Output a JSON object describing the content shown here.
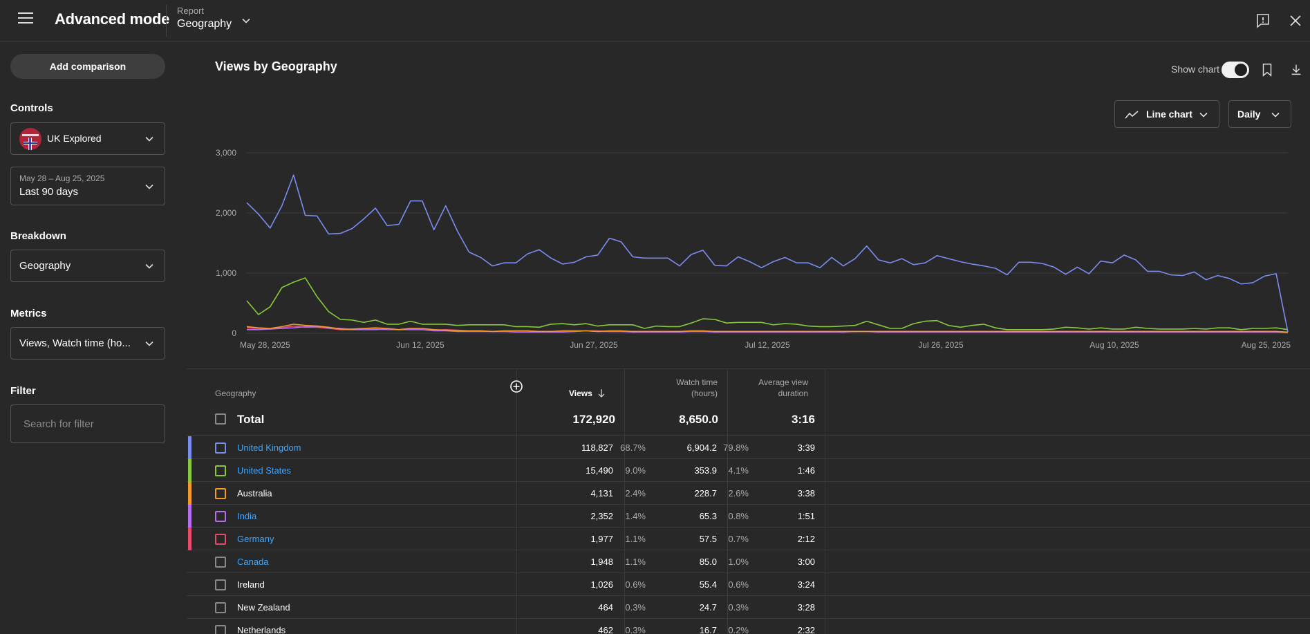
{
  "header": {
    "app_title": "Advanced mode",
    "report_label": "Report",
    "report_value": "Geography"
  },
  "sidebar": {
    "add_comparison": "Add comparison",
    "controls_title": "Controls",
    "channel_name": "UK Explored",
    "date_range": "May 28 – Aug 25, 2025",
    "date_preset": "Last 90 days",
    "breakdown_title": "Breakdown",
    "breakdown_value": "Geography",
    "metrics_title": "Metrics",
    "metrics_value": "Views, Watch time (ho...",
    "filter_title": "Filter",
    "filter_placeholder": "Search for filter"
  },
  "main": {
    "chart_title": "Views by Geography",
    "show_chart_label": "Show chart",
    "show_chart_on": true,
    "chart_type_label": "Line chart",
    "interval_label": "Daily"
  },
  "chart_data": {
    "type": "line",
    "xlabel": "",
    "ylabel": "",
    "ylim": [
      0,
      3000
    ],
    "y_ticks": [
      "3,000",
      "2,000",
      "1,000",
      "0"
    ],
    "x_tick_labels": [
      "May 28, 2025",
      "Jun 12, 2025",
      "Jun 27, 2025",
      "Jul 12, 2025",
      "Jul 26, 2025",
      "Aug 10, 2025",
      "Aug 25, 2025"
    ],
    "grid": true,
    "series": [
      {
        "color": "#7b8cf0",
        "values": [
          2170,
          1980,
          1750,
          2120,
          2630,
          1960,
          1950,
          1650,
          1660,
          1740,
          1900,
          2080,
          1790,
          1810,
          2200,
          2200,
          1720,
          2120,
          1700,
          1350,
          1260,
          1120,
          1170,
          1170,
          1320,
          1390,
          1250,
          1150,
          1180,
          1270,
          1300,
          1580,
          1520,
          1270,
          1250,
          1250,
          1250,
          1120,
          1310,
          1380,
          1130,
          1120,
          1270,
          1190,
          1090,
          1190,
          1260,
          1170,
          1170,
          1090,
          1260,
          1120,
          1240,
          1450,
          1220,
          1170,
          1240,
          1140,
          1170,
          1290,
          1240,
          1190,
          1150,
          1120,
          1080,
          970,
          1180,
          1180,
          1160,
          1100,
          980,
          1100,
          990,
          1200,
          1170,
          1300,
          1220,
          1030,
          1030,
          970,
          960,
          1020,
          890,
          960,
          910,
          820,
          840,
          950,
          990,
          20
        ]
      },
      {
        "color": "#88c93b",
        "values": [
          540,
          310,
          440,
          760,
          850,
          920,
          610,
          360,
          230,
          220,
          180,
          220,
          150,
          150,
          200,
          150,
          150,
          150,
          130,
          140,
          140,
          140,
          140,
          110,
          110,
          100,
          150,
          160,
          140,
          160,
          120,
          140,
          140,
          140,
          80,
          120,
          110,
          110,
          170,
          240,
          230,
          170,
          180,
          180,
          180,
          140,
          160,
          150,
          120,
          110,
          110,
          120,
          130,
          200,
          140,
          80,
          80,
          160,
          200,
          210,
          130,
          100,
          130,
          150,
          90,
          60,
          60,
          60,
          60,
          70,
          100,
          90,
          70,
          90,
          70,
          70,
          100,
          80,
          70,
          70,
          70,
          80,
          70,
          90,
          90,
          60,
          80,
          80,
          90,
          60
        ]
      },
      {
        "color": "#f59a26",
        "values": [
          110,
          90,
          80,
          110,
          150,
          130,
          120,
          100,
          70,
          70,
          80,
          90,
          80,
          60,
          80,
          80,
          60,
          50,
          40,
          40,
          40,
          30,
          40,
          40,
          40,
          30,
          30,
          40,
          40,
          40,
          30,
          40,
          40,
          30,
          30,
          30,
          30,
          30,
          40,
          40,
          30,
          30,
          30,
          30,
          30,
          30,
          30,
          30,
          30,
          30,
          30,
          30,
          30,
          30,
          30,
          30,
          30,
          30,
          30,
          30,
          30,
          30,
          30,
          30,
          30,
          30,
          30,
          30,
          30,
          30,
          30,
          30,
          30,
          30,
          30,
          30,
          30,
          30,
          30,
          30,
          30,
          30,
          30,
          30,
          30,
          30,
          30,
          30,
          30,
          20
        ]
      },
      {
        "color": "#b56ef0",
        "values": [
          60,
          60,
          70,
          80,
          90,
          110,
          110,
          90,
          80,
          60,
          60,
          60,
          70,
          60,
          60,
          60,
          40,
          40,
          30,
          30,
          30,
          30,
          30,
          20,
          20,
          20,
          20,
          20,
          30,
          40,
          30,
          30,
          30,
          20,
          20,
          20,
          20,
          20,
          30,
          30,
          20,
          20,
          20,
          20,
          20,
          20,
          20,
          20,
          20,
          20,
          20,
          20,
          30,
          30,
          20,
          20,
          20,
          20,
          20,
          20,
          20,
          20,
          20,
          20,
          20,
          20,
          20,
          20,
          20,
          20,
          20,
          20,
          20,
          20,
          20,
          20,
          20,
          20,
          20,
          20,
          20,
          20,
          20,
          20,
          20,
          20,
          20,
          20,
          20,
          10
        ]
      },
      {
        "color": "#e84a6c",
        "values": [
          90,
          80,
          70,
          90,
          120,
          100,
          100,
          80,
          60,
          60,
          70,
          70,
          60,
          60,
          80,
          60,
          50,
          60,
          50,
          40,
          40,
          30,
          30,
          40,
          40,
          30,
          30,
          30,
          30,
          40,
          40,
          30,
          30,
          30,
          30,
          30,
          30,
          30,
          30,
          30,
          30,
          30,
          30,
          30,
          30,
          30,
          30,
          30,
          30,
          30,
          30,
          30,
          30,
          30,
          30,
          30,
          30,
          30,
          30,
          30,
          30,
          30,
          30,
          30,
          30,
          30,
          30,
          30,
          30,
          30,
          30,
          30,
          30,
          30,
          30,
          30,
          30,
          30,
          30,
          30,
          30,
          30,
          30,
          30,
          30,
          30,
          30,
          30,
          30,
          10
        ]
      }
    ]
  },
  "table": {
    "col_geography": "Geography",
    "col_views": "Views",
    "col_watch_1": "Watch time",
    "col_watch_2": "(hours)",
    "col_avg_1": "Average view",
    "col_avg_2": "duration",
    "total": {
      "label": "Total",
      "views": "172,920",
      "watch": "8,650.0",
      "avg": "3:16"
    },
    "rows": [
      {
        "name": "United Kingdom",
        "link": true,
        "color": "#7b8cf0",
        "views": "118,827",
        "views_pct": "68.7%",
        "watch": "6,904.2",
        "watch_pct": "79.8%",
        "avg": "3:39"
      },
      {
        "name": "United States",
        "link": true,
        "color": "#88c93b",
        "views": "15,490",
        "views_pct": "9.0%",
        "watch": "353.9",
        "watch_pct": "4.1%",
        "avg": "1:46"
      },
      {
        "name": "Australia",
        "link": false,
        "color": "#f59a26",
        "views": "4,131",
        "views_pct": "2.4%",
        "watch": "228.7",
        "watch_pct": "2.6%",
        "avg": "3:38"
      },
      {
        "name": "India",
        "link": true,
        "color": "#b56ef0",
        "views": "2,352",
        "views_pct": "1.4%",
        "watch": "65.3",
        "watch_pct": "0.8%",
        "avg": "1:51"
      },
      {
        "name": "Germany",
        "link": true,
        "color": "#e84a6c",
        "views": "1,977",
        "views_pct": "1.1%",
        "watch": "57.5",
        "watch_pct": "0.7%",
        "avg": "2:12"
      },
      {
        "name": "Canada",
        "link": true,
        "color": "",
        "views": "1,948",
        "views_pct": "1.1%",
        "watch": "85.0",
        "watch_pct": "1.0%",
        "avg": "3:00"
      },
      {
        "name": "Ireland",
        "link": false,
        "color": "",
        "views": "1,026",
        "views_pct": "0.6%",
        "watch": "55.4",
        "watch_pct": "0.6%",
        "avg": "3:24"
      },
      {
        "name": "New Zealand",
        "link": false,
        "color": "",
        "views": "464",
        "views_pct": "0.3%",
        "watch": "24.7",
        "watch_pct": "0.3%",
        "avg": "3:28"
      },
      {
        "name": "Netherlands",
        "link": false,
        "color": "",
        "views": "462",
        "views_pct": "0.3%",
        "watch": "16.7",
        "watch_pct": "0.2%",
        "avg": "2:32"
      }
    ]
  }
}
